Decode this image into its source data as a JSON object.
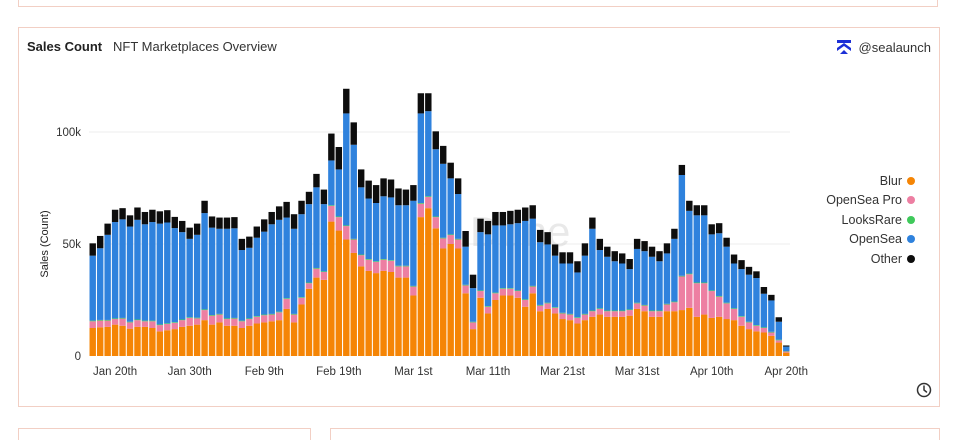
{
  "header": {
    "title": "Sales Count",
    "subtitle": "NFT Marketplaces Overview",
    "brand": "@sealaunch"
  },
  "watermark": "Dune",
  "colors": {
    "Blur": "#f58505",
    "OpenSea Pro": "#ed7fa2",
    "LooksRare": "#3fc95b",
    "OpenSea": "#2f82dd",
    "Other": "#0d0d0d",
    "grid": "#eeeeee",
    "border": "#f2cfc4"
  },
  "icons": {
    "brand": "sealaunch-logo-icon",
    "refresh": "clock-icon"
  },
  "chart_data": {
    "type": "bar",
    "stacked": true,
    "title": "Sales Count",
    "subtitle": "NFT Marketplaces Overview",
    "ylabel": "Sales (Count)",
    "xlabel": "",
    "ylim": [
      0,
      120000
    ],
    "yticks": [
      0,
      50000,
      100000
    ],
    "ytick_labels": [
      "0",
      "50k",
      "100k"
    ],
    "grid": true,
    "legend_position": "right",
    "xticks": [
      {
        "index": 3,
        "label": "Jan 20th"
      },
      {
        "index": 13,
        "label": "Jan 30th"
      },
      {
        "index": 23,
        "label": "Feb 9th"
      },
      {
        "index": 33,
        "label": "Feb 19th"
      },
      {
        "index": 43,
        "label": "Mar 1st"
      },
      {
        "index": 53,
        "label": "Mar 11th"
      },
      {
        "index": 63,
        "label": "Mar 21st"
      },
      {
        "index": 73,
        "label": "Mar 31st"
      },
      {
        "index": 83,
        "label": "Apr 10th"
      },
      {
        "index": 93,
        "label": "Apr 20th"
      }
    ],
    "categories": [
      "Jan 17",
      "Jan 18",
      "Jan 19",
      "Jan 20",
      "Jan 21",
      "Jan 22",
      "Jan 23",
      "Jan 24",
      "Jan 25",
      "Jan 26",
      "Jan 27",
      "Jan 28",
      "Jan 29",
      "Jan 30",
      "Jan 31",
      "Feb 1",
      "Feb 2",
      "Feb 3",
      "Feb 4",
      "Feb 5",
      "Feb 6",
      "Feb 7",
      "Feb 8",
      "Feb 9",
      "Feb 10",
      "Feb 11",
      "Feb 12",
      "Feb 13",
      "Feb 14",
      "Feb 15",
      "Feb 16",
      "Feb 17",
      "Feb 18",
      "Feb 19",
      "Feb 20",
      "Feb 21",
      "Feb 22",
      "Feb 23",
      "Feb 24",
      "Feb 25",
      "Feb 26",
      "Feb 27",
      "Feb 28",
      "Mar 1",
      "Mar 2",
      "Mar 3",
      "Mar 4",
      "Mar 5",
      "Mar 6",
      "Mar 7",
      "Mar 8",
      "Mar 9",
      "Mar 10",
      "Mar 11",
      "Mar 12",
      "Mar 13",
      "Mar 14",
      "Mar 15",
      "Mar 16",
      "Mar 17",
      "Mar 18",
      "Mar 19",
      "Mar 20",
      "Mar 21",
      "Mar 22",
      "Mar 23",
      "Mar 24",
      "Mar 25",
      "Mar 26",
      "Mar 27",
      "Mar 28",
      "Mar 29",
      "Mar 30",
      "Mar 31",
      "Apr 1",
      "Apr 2",
      "Apr 3",
      "Apr 4",
      "Apr 5",
      "Apr 6",
      "Apr 7",
      "Apr 8",
      "Apr 9",
      "Apr 10",
      "Apr 11",
      "Apr 12",
      "Apr 13",
      "Apr 14",
      "Apr 15",
      "Apr 16",
      "Apr 17",
      "Apr 18",
      "Apr 19",
      "Apr 20"
    ],
    "series": [
      {
        "name": "Blur",
        "values": [
          12500,
          12800,
          13000,
          14000,
          13500,
          12200,
          13000,
          13000,
          12500,
          11000,
          11500,
          12000,
          13000,
          13500,
          14000,
          16000,
          14000,
          15000,
          13500,
          13500,
          12500,
          13500,
          14500,
          15000,
          15500,
          16000,
          21000,
          15000,
          23000,
          30000,
          35000,
          34000,
          60000,
          56000,
          52000,
          46000,
          40000,
          38000,
          37000,
          38000,
          37500,
          35000,
          35000,
          27000,
          62000,
          66000,
          57000,
          48000,
          50000,
          48000,
          28000,
          12000,
          26000,
          19000,
          25000,
          27000,
          27000,
          26000,
          22000,
          28000,
          20000,
          21000,
          19000,
          16500,
          16000,
          14500,
          16000,
          17500,
          18500,
          17500,
          17500,
          17500,
          18000,
          21000,
          20000,
          17500,
          17500,
          20000,
          20000,
          20500,
          21500,
          17500,
          18500,
          17000,
          17500,
          16500,
          16000,
          13500,
          12000,
          11000,
          10500,
          9000,
          6000,
          1500
        ]
      },
      {
        "name": "OpenSea Pro",
        "values": [
          3000,
          3000,
          2800,
          2500,
          3200,
          2800,
          3000,
          2500,
          3000,
          2800,
          2800,
          2800,
          3000,
          3500,
          2800,
          4500,
          4000,
          3500,
          3000,
          3200,
          3000,
          3000,
          3000,
          3200,
          3000,
          3500,
          4500,
          3500,
          3000,
          2500,
          4000,
          3500,
          7000,
          6000,
          6000,
          6000,
          5000,
          5000,
          5000,
          5000,
          5000,
          5000,
          5000,
          4000,
          6000,
          5000,
          5000,
          4500,
          4000,
          4000,
          3500,
          3000,
          3000,
          3000,
          3000,
          3000,
          3000,
          3000,
          3000,
          3000,
          2500,
          2500,
          2500,
          2500,
          2500,
          2500,
          2500,
          2500,
          2500,
          2500,
          2500,
          2500,
          2500,
          2500,
          2500,
          2500,
          2500,
          3000,
          4000,
          15000,
          15000,
          15000,
          14000,
          12000,
          9000,
          7000,
          5000,
          4000,
          3000,
          2500,
          2000,
          1500,
          1000,
          500
        ]
      },
      {
        "name": "LooksRare",
        "values": [
          300,
          300,
          300,
          300,
          300,
          300,
          300,
          300,
          300,
          300,
          300,
          300,
          300,
          300,
          300,
          300,
          300,
          300,
          300,
          300,
          300,
          300,
          300,
          300,
          300,
          300,
          300,
          300,
          300,
          300,
          300,
          300,
          300,
          300,
          300,
          300,
          300,
          300,
          300,
          300,
          300,
          300,
          300,
          300,
          300,
          300,
          300,
          300,
          300,
          300,
          300,
          300,
          300,
          300,
          300,
          300,
          300,
          300,
          300,
          300,
          300,
          300,
          300,
          300,
          300,
          300,
          300,
          300,
          300,
          300,
          300,
          300,
          300,
          300,
          300,
          300,
          300,
          300,
          300,
          300,
          300,
          300,
          300,
          300,
          300,
          300,
          300,
          300,
          300,
          300,
          300,
          300,
          300,
          200
        ]
      },
      {
        "name": "OpenSea",
        "values": [
          29000,
          32000,
          38000,
          43000,
          44000,
          42500,
          44500,
          43000,
          44000,
          45000,
          45000,
          42000,
          39000,
          35000,
          37000,
          43000,
          39000,
          38000,
          40000,
          40000,
          31500,
          31500,
          35000,
          37000,
          40000,
          41000,
          36000,
          38000,
          37000,
          35000,
          36000,
          30000,
          20000,
          21000,
          50000,
          42000,
          30000,
          27000,
          26000,
          28000,
          28000,
          27000,
          27000,
          38000,
          40000,
          38000,
          30000,
          33000,
          25000,
          20000,
          17000,
          15000,
          26000,
          32000,
          30000,
          28000,
          28500,
          30000,
          35000,
          30000,
          28000,
          26000,
          23000,
          22000,
          22500,
          20000,
          26000,
          36500,
          26000,
          24000,
          22000,
          21000,
          18000,
          24000,
          24000,
          24000,
          22000,
          22500,
          28000,
          45000,
          28000,
          30000,
          30000,
          25000,
          28000,
          25000,
          20000,
          21000,
          21000,
          21000,
          15000,
          14000,
          8000,
          2000
        ]
      },
      {
        "name": "Other",
        "values": [
          5500,
          5500,
          5000,
          5500,
          5000,
          5000,
          5500,
          5500,
          5500,
          5500,
          5500,
          5000,
          5000,
          5000,
          5000,
          5500,
          5000,
          5000,
          5000,
          5000,
          5000,
          5000,
          5000,
          5500,
          5500,
          6000,
          7000,
          6500,
          6000,
          5500,
          6000,
          6500,
          12000,
          10000,
          11000,
          10000,
          8000,
          8000,
          8000,
          8000,
          8000,
          7500,
          7000,
          7000,
          9000,
          8000,
          8000,
          8000,
          7000,
          7000,
          7000,
          6000,
          6000,
          6000,
          6000,
          6000,
          6000,
          6000,
          6000,
          6000,
          5500,
          5500,
          5000,
          5000,
          5000,
          5000,
          5500,
          5000,
          5000,
          4500,
          4500,
          4500,
          4500,
          4500,
          4500,
          4500,
          4500,
          4500,
          4500,
          4500,
          4500,
          4500,
          4500,
          4500,
          4500,
          4000,
          4000,
          4000,
          3500,
          3000,
          3000,
          2500,
          2000,
          500
        ]
      }
    ]
  }
}
